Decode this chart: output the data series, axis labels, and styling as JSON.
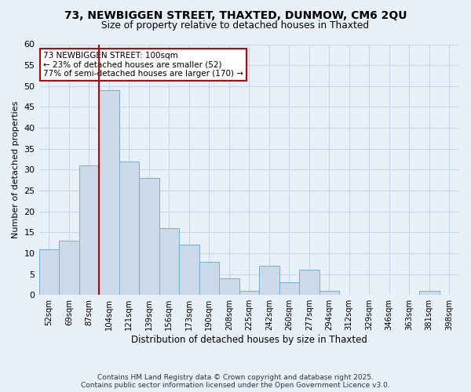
{
  "title1": "73, NEWBIGGEN STREET, THAXTED, DUNMOW, CM6 2QU",
  "title2": "Size of property relative to detached houses in Thaxted",
  "xlabel": "Distribution of detached houses by size in Thaxted",
  "ylabel": "Number of detached properties",
  "categories": [
    "52sqm",
    "69sqm",
    "87sqm",
    "104sqm",
    "121sqm",
    "139sqm",
    "156sqm",
    "173sqm",
    "190sqm",
    "208sqm",
    "225sqm",
    "242sqm",
    "260sqm",
    "277sqm",
    "294sqm",
    "312sqm",
    "329sqm",
    "346sqm",
    "363sqm",
    "381sqm",
    "398sqm"
  ],
  "values": [
    11,
    13,
    31,
    49,
    32,
    28,
    16,
    12,
    8,
    4,
    1,
    7,
    3,
    6,
    1,
    0,
    0,
    0,
    0,
    1,
    0
  ],
  "bar_color": "#ccd9e8",
  "bar_edge_color": "#7aadd4",
  "grid_color": "#c8d8e8",
  "background_color": "#e8f0f8",
  "vline_color": "#cc0000",
  "annotation_text": "73 NEWBIGGEN STREET: 100sqm\n← 23% of detached houses are smaller (52)\n77% of semi-detached houses are larger (170) →",
  "annotation_box_color": "#ffffff",
  "annotation_box_edge": "#cc0000",
  "ylim": [
    0,
    60
  ],
  "yticks": [
    0,
    5,
    10,
    15,
    20,
    25,
    30,
    35,
    40,
    45,
    50,
    55,
    60
  ],
  "footer": "Contains HM Land Registry data © Crown copyright and database right 2025.\nContains public sector information licensed under the Open Government Licence v3.0."
}
